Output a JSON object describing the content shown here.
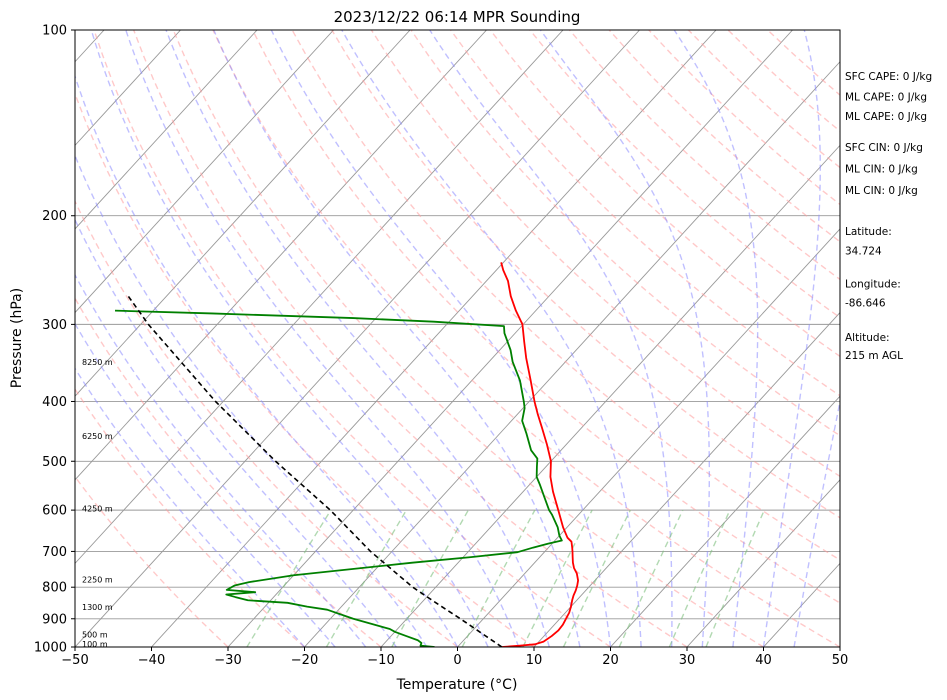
{
  "chart_data": {
    "type": "skew-t log-p",
    "title": "2023/12/22 06:14 MPR Sounding",
    "xlabel": "Temperature (°C)",
    "ylabel": "Pressure (hPa)",
    "xlim": [
      -50,
      50
    ],
    "ylim": [
      1000,
      100
    ],
    "y_scale": "log",
    "x_ticks": [
      "−50",
      "−40",
      "−30",
      "−20",
      "−10",
      "0",
      "10",
      "20",
      "30",
      "40",
      "50"
    ],
    "y_ticks": [
      {
        "p": 100,
        "label": "100"
      },
      {
        "p": 200,
        "label": "200"
      },
      {
        "p": 300,
        "label": "300"
      },
      {
        "p": 400,
        "label": "400"
      },
      {
        "p": 500,
        "label": "500"
      },
      {
        "p": 600,
        "label": "600"
      },
      {
        "p": 700,
        "label": "700"
      },
      {
        "p": 800,
        "label": "800"
      },
      {
        "p": 900,
        "label": "900"
      },
      {
        "p": 1000,
        "label": "1000"
      }
    ],
    "height_labels": [
      {
        "p": 988,
        "label": "100 m"
      },
      {
        "p": 955,
        "label": "500 m"
      },
      {
        "p": 862,
        "label": "1300 m"
      },
      {
        "p": 777,
        "label": "2250 m"
      },
      {
        "p": 596,
        "label": "4250 m"
      },
      {
        "p": 455,
        "label": "6250 m"
      },
      {
        "p": 345,
        "label": "8250 m"
      }
    ],
    "series": [
      {
        "name": "temperature",
        "color": "#ff0000",
        "points": [
          [
            1000,
            5.8
          ],
          [
            995,
            8.0
          ],
          [
            990,
            9.8
          ],
          [
            980,
            10.6
          ],
          [
            960,
            11.0
          ],
          [
            940,
            11.2
          ],
          [
            920,
            11.1
          ],
          [
            900,
            10.8
          ],
          [
            880,
            10.5
          ],
          [
            860,
            10.0
          ],
          [
            840,
            9.4
          ],
          [
            825,
            9.0
          ],
          [
            810,
            8.7
          ],
          [
            795,
            8.3
          ],
          [
            780,
            7.8
          ],
          [
            760,
            6.8
          ],
          [
            745,
            5.8
          ],
          [
            730,
            5.0
          ],
          [
            715,
            4.3
          ],
          [
            700,
            3.6
          ],
          [
            690,
            3.1
          ],
          [
            675,
            2.3
          ],
          [
            665,
            1.3
          ],
          [
            640,
            -0.5
          ],
          [
            600,
            -3.2
          ],
          [
            560,
            -6.1
          ],
          [
            530,
            -8.2
          ],
          [
            500,
            -10.0
          ],
          [
            470,
            -12.5
          ],
          [
            440,
            -15.3
          ],
          [
            420,
            -17.3
          ],
          [
            400,
            -19.3
          ],
          [
            370,
            -22.3
          ],
          [
            340,
            -25.6
          ],
          [
            320,
            -27.8
          ],
          [
            300,
            -30.1
          ],
          [
            285,
            -32.6
          ],
          [
            270,
            -35.0
          ],
          [
            255,
            -37.2
          ],
          [
            245,
            -39.1
          ],
          [
            238,
            -40.3
          ]
        ]
      },
      {
        "name": "dewpoint",
        "color": "#008000",
        "points": [
          [
            1000,
            -3.0
          ],
          [
            995,
            -5.0
          ],
          [
            985,
            -5.2
          ],
          [
            975,
            -6.0
          ],
          [
            960,
            -8.0
          ],
          [
            945,
            -10.0
          ],
          [
            935,
            -11.0
          ],
          [
            900,
            -17.0
          ],
          [
            870,
            -21.5
          ],
          [
            860,
            -24.5
          ],
          [
            848,
            -27.5
          ],
          [
            840,
            -33.0
          ],
          [
            830,
            -35.0
          ],
          [
            822,
            -36.5
          ],
          [
            815,
            -33.0
          ],
          [
            808,
            -37.0
          ],
          [
            795,
            -36.5
          ],
          [
            785,
            -35.0
          ],
          [
            765,
            -30.0
          ],
          [
            730,
            -16.0
          ],
          [
            715,
            -9.0
          ],
          [
            702,
            -3.5
          ],
          [
            690,
            -2.0
          ],
          [
            680,
            -0.5
          ],
          [
            672,
            0.9
          ],
          [
            660,
            0.0
          ],
          [
            640,
            -1.2
          ],
          [
            610,
            -3.5
          ],
          [
            600,
            -4.4
          ],
          [
            570,
            -6.7
          ],
          [
            545,
            -8.7
          ],
          [
            530,
            -10.0
          ],
          [
            510,
            -11.2
          ],
          [
            495,
            -12.1
          ],
          [
            480,
            -13.9
          ],
          [
            450,
            -16.6
          ],
          [
            430,
            -18.6
          ],
          [
            410,
            -19.8
          ],
          [
            400,
            -20.7
          ],
          [
            370,
            -23.7
          ],
          [
            345,
            -26.9
          ],
          [
            330,
            -28.6
          ],
          [
            310,
            -31.4
          ],
          [
            302,
            -32.3
          ],
          [
            297,
            -42.0
          ],
          [
            293,
            -53.0
          ],
          [
            288,
            -72.0
          ],
          [
            285,
            -85.0
          ]
        ]
      },
      {
        "name": "parcel",
        "color": "#000000",
        "points": [
          [
            1000,
            5.8
          ],
          [
            900,
            -3.0
          ],
          [
            850,
            -7.9
          ],
          [
            800,
            -13.0
          ],
          [
            700,
            -22.8
          ],
          [
            600,
            -33.0
          ],
          [
            500,
            -46.0
          ],
          [
            400,
            -61.0
          ],
          [
            300,
            -79.0
          ],
          [
            270,
            -85.0
          ]
        ]
      }
    ],
    "side_info": [
      {
        "text": "SFC CAPE: 0 J/kg",
        "p": 119.0
      },
      {
        "text": "ML CAPE: 0 J/kg",
        "p": 128.5
      },
      {
        "text": "ML CAPE: 0 J/kg",
        "p": 138.0
      },
      {
        "text": "SFC CIN: 0 J/kg",
        "p": 155.0
      },
      {
        "text": "ML CIN: 0 J/kg",
        "p": 168.0
      },
      {
        "text": "ML CIN: 0 J/kg",
        "p": 182.0
      },
      {
        "text": "Latitude:",
        "p": 212.0
      },
      {
        "text": "34.724",
        "p": 228.0
      },
      {
        "text": "Longitude:",
        "p": 258.0
      },
      {
        "text": "-86.646",
        "p": 277.0
      },
      {
        "text": "Altitude:",
        "p": 315.0
      },
      {
        "text": "215 m AGL",
        "p": 337.0
      }
    ],
    "reference_lines": {
      "isotherm_color": "#999999",
      "dry_adiabat_color": "#ff9c9c",
      "moist_adiabat_color": "#8c8cff",
      "mixing_ratio_color": "#7fbf7f"
    }
  }
}
